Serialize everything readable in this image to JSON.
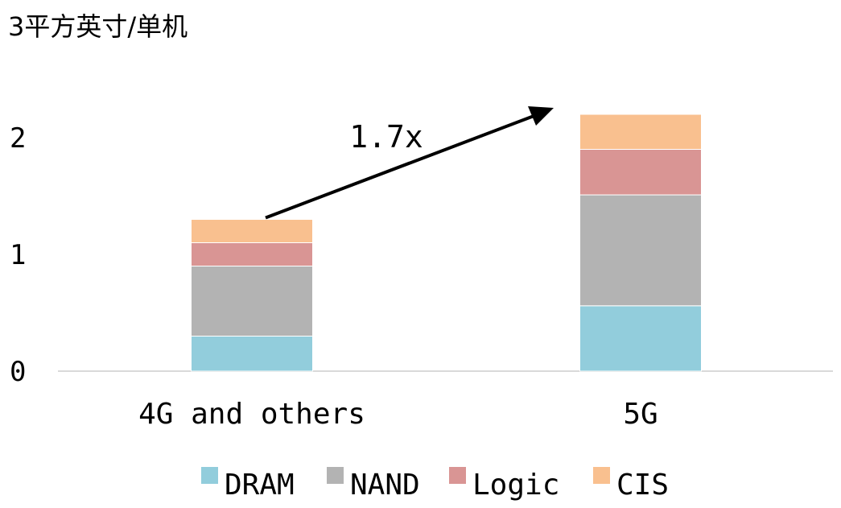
{
  "chart_data": {
    "type": "bar",
    "stacked": true,
    "ylabel": "3平方英寸/单机",
    "categories": [
      "4G and others",
      "5G"
    ],
    "series": [
      {
        "name": "DRAM",
        "color": "#92CDDC",
        "values": [
          0.3,
          0.56
        ]
      },
      {
        "name": "NAND",
        "color": "#B3B3B3",
        "values": [
          0.6,
          0.95
        ]
      },
      {
        "name": "Logic",
        "color": "#D99594",
        "values": [
          0.2,
          0.39
        ]
      },
      {
        "name": "CIS",
        "color": "#F9C08F",
        "values": [
          0.2,
          0.3
        ]
      }
    ],
    "ylim": [
      0,
      2.2
    ],
    "yticks": [
      0,
      1,
      2
    ],
    "annotation": {
      "text": "1.7x",
      "from_category": "4G and others",
      "to_category": "5G"
    },
    "legend_position": "bottom",
    "grid": false
  }
}
